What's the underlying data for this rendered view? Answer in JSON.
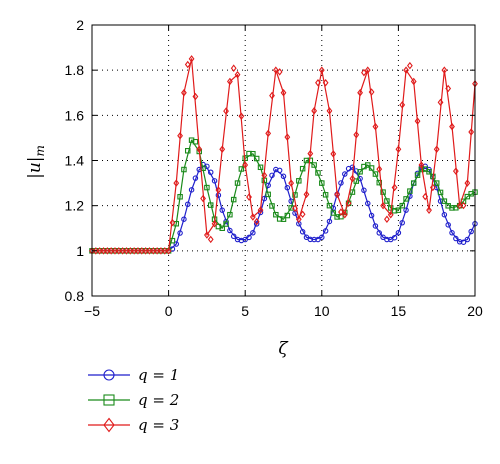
{
  "chart_data": {
    "type": "line",
    "xlabel": "ζ",
    "ylabel": "|u|",
    "ylabel_sub": "m",
    "xlim": [
      -5,
      20
    ],
    "ylim": [
      0.8,
      2.0
    ],
    "xticks": [
      "−5",
      "0",
      "5",
      "10",
      "15",
      "20"
    ],
    "yticks": [
      "0.8",
      "1",
      "1.2",
      "1.4",
      "1.6",
      "1.8",
      "2"
    ],
    "grid": true,
    "legend_position": "below",
    "series": [
      {
        "name": "q = 1",
        "color": "#1f1fcc",
        "marker": "circle",
        "x": [
          -5,
          -0.5,
          0,
          0.5,
          1,
          1.5,
          2,
          2.4,
          3,
          3.5,
          4,
          4.5,
          5,
          5.5,
          6,
          6.5,
          7,
          7.5,
          8,
          8.5,
          9,
          9.5,
          10,
          10.5,
          11,
          11.5,
          12,
          12.5,
          13,
          13.5,
          14,
          14.5,
          15,
          15.5,
          16,
          16.5,
          17,
          17.5,
          18,
          18.5,
          19,
          19.5,
          20
        ],
        "y": [
          1.0,
          1.0,
          1.0,
          1.03,
          1.14,
          1.27,
          1.36,
          1.38,
          1.31,
          1.18,
          1.09,
          1.05,
          1.05,
          1.08,
          1.17,
          1.29,
          1.36,
          1.33,
          1.22,
          1.12,
          1.06,
          1.05,
          1.06,
          1.13,
          1.25,
          1.34,
          1.37,
          1.32,
          1.21,
          1.11,
          1.06,
          1.05,
          1.08,
          1.18,
          1.3,
          1.37,
          1.36,
          1.28,
          1.16,
          1.08,
          1.04,
          1.05,
          1.12
        ]
      },
      {
        "name": "q = 2",
        "color": "#1a8a1a",
        "marker": "square",
        "x": [
          -5,
          -0.5,
          0,
          0.5,
          1,
          1.5,
          2,
          2.5,
          3,
          3.5,
          4,
          4.5,
          5,
          5.5,
          6,
          6.5,
          7,
          7.5,
          8,
          8.5,
          9,
          9.5,
          10,
          10.5,
          11,
          11.5,
          12,
          12.5,
          13,
          13.5,
          14,
          14.5,
          15,
          15.5,
          16,
          16.5,
          17,
          17.5,
          18,
          18.5,
          19,
          19.5,
          20
        ],
        "y": [
          1.0,
          1.0,
          1.0,
          1.12,
          1.36,
          1.49,
          1.44,
          1.28,
          1.14,
          1.1,
          1.16,
          1.3,
          1.41,
          1.43,
          1.37,
          1.25,
          1.16,
          1.14,
          1.19,
          1.31,
          1.4,
          1.38,
          1.3,
          1.2,
          1.15,
          1.17,
          1.26,
          1.35,
          1.38,
          1.34,
          1.26,
          1.19,
          1.18,
          1.23,
          1.3,
          1.36,
          1.35,
          1.3,
          1.22,
          1.19,
          1.2,
          1.24,
          1.26
        ]
      },
      {
        "name": "q = 3",
        "color": "#e01b1b",
        "marker": "diamond",
        "x": [
          -5,
          -0.5,
          0,
          0.5,
          1,
          1.5,
          2,
          2.5,
          3,
          3.5,
          4,
          4.5,
          5,
          5.5,
          6,
          6.5,
          7,
          7.5,
          8,
          8.5,
          9,
          9.5,
          10,
          10.5,
          11,
          11.5,
          12,
          12.5,
          13,
          13.5,
          14,
          14.5,
          15,
          15.5,
          16,
          16.5,
          17,
          17.5,
          18,
          18.5,
          19,
          19.5,
          20
        ],
        "y": [
          1.0,
          1.0,
          1.0,
          1.3,
          1.7,
          1.85,
          1.45,
          1.07,
          1.12,
          1.45,
          1.75,
          1.78,
          1.38,
          1.15,
          1.18,
          1.52,
          1.8,
          1.7,
          1.3,
          1.14,
          1.25,
          1.62,
          1.8,
          1.62,
          1.25,
          1.16,
          1.32,
          1.7,
          1.8,
          1.55,
          1.2,
          1.16,
          1.45,
          1.8,
          1.75,
          1.38,
          1.18,
          1.45,
          1.8,
          1.55,
          1.2,
          1.3,
          1.74
        ]
      }
    ]
  }
}
